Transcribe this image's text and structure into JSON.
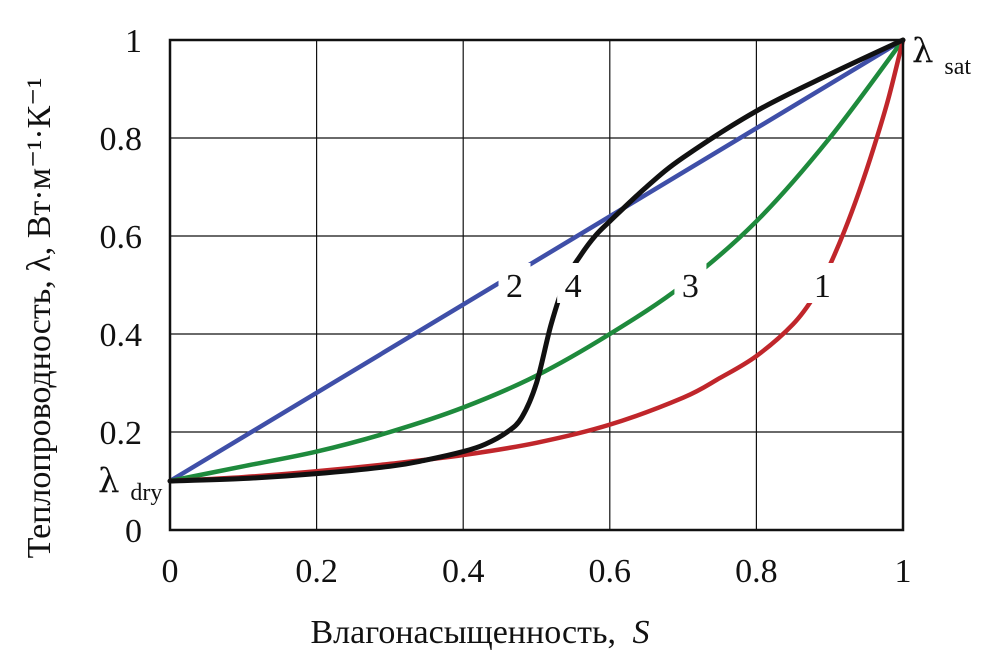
{
  "chart_data": {
    "type": "line",
    "xlabel": "Влагонасыщенность,",
    "xlabel_var": "S",
    "ylabel": "Теплопроводность, λ, Вт·м⁻¹·К⁻¹",
    "xlim": [
      0,
      1
    ],
    "ylim": [
      0,
      1
    ],
    "grid": true,
    "x_ticks": [
      "0",
      "0.2",
      "0.4",
      "0.6",
      "0.8",
      "1"
    ],
    "y_ticks": [
      "0",
      "0.2",
      "0.4",
      "0.6",
      "0.8",
      "1"
    ],
    "endpoint_labels": {
      "dry": {
        "symbol": "λ",
        "sub": "dry"
      },
      "sat": {
        "symbol": "λ",
        "sub": "sat"
      }
    },
    "series": [
      {
        "label": "1",
        "color": "#c0262b",
        "x": [
          0,
          0.1,
          0.2,
          0.3,
          0.4,
          0.5,
          0.6,
          0.7,
          0.75,
          0.8,
          0.85,
          0.88,
          0.9,
          0.92,
          0.94,
          0.96,
          0.98,
          1.0
        ],
        "y": [
          0.1,
          0.108,
          0.12,
          0.135,
          0.153,
          0.178,
          0.215,
          0.27,
          0.31,
          0.355,
          0.42,
          0.48,
          0.54,
          0.61,
          0.69,
          0.78,
          0.88,
          1.0
        ]
      },
      {
        "label": "2",
        "color": "#3f4fa8",
        "x": [
          0,
          1
        ],
        "y": [
          0.1,
          1.0
        ]
      },
      {
        "label": "3",
        "color": "#1e8a3c",
        "x": [
          0,
          0.1,
          0.2,
          0.3,
          0.4,
          0.5,
          0.6,
          0.7,
          0.8,
          0.9,
          1.0
        ],
        "y": [
          0.1,
          0.13,
          0.16,
          0.2,
          0.25,
          0.315,
          0.4,
          0.5,
          0.63,
          0.8,
          1.0
        ]
      },
      {
        "label": "4",
        "color": "#111111",
        "x": [
          0,
          0.1,
          0.2,
          0.3,
          0.35,
          0.4,
          0.43,
          0.46,
          0.48,
          0.5,
          0.52,
          0.54,
          0.56,
          0.58,
          0.6,
          0.65,
          0.7,
          0.8,
          0.9,
          1.0
        ],
        "y": [
          0.1,
          0.105,
          0.115,
          0.13,
          0.143,
          0.16,
          0.175,
          0.2,
          0.23,
          0.3,
          0.42,
          0.51,
          0.56,
          0.6,
          0.63,
          0.7,
          0.76,
          0.855,
          0.93,
          1.0
        ]
      }
    ],
    "label_positions": [
      {
        "series": "1",
        "x": 0.89,
        "y": 0.5
      },
      {
        "series": "2",
        "x": 0.47,
        "y": 0.5
      },
      {
        "series": "3",
        "x": 0.71,
        "y": 0.5
      },
      {
        "series": "4",
        "x": 0.55,
        "y": 0.5
      }
    ]
  }
}
